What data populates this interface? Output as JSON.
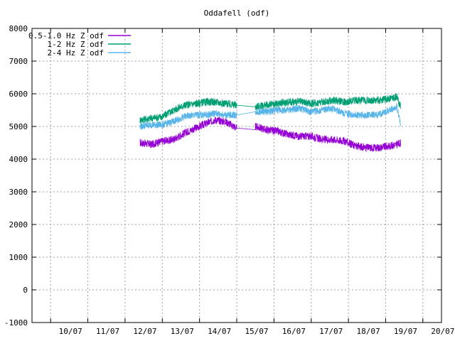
{
  "chart_data": {
    "type": "line",
    "title": "Oddafell (odf)",
    "xlabel": "",
    "ylabel": "",
    "x_tick_labels": [
      "10/07",
      "11/07",
      "12/07",
      "13/07",
      "14/07",
      "15/07",
      "16/07",
      "17/07",
      "18/07",
      "19/07",
      "20/07"
    ],
    "xlim": [
      9.5,
      20.5
    ],
    "ylim": [
      -1000,
      8000
    ],
    "y_ticks": [
      -1000,
      0,
      1000,
      2000,
      3000,
      4000,
      5000,
      6000,
      7000,
      8000
    ],
    "grid": true,
    "legend_position": "top-left",
    "series": [
      {
        "name": "0.5-1.0 Hz Z odf",
        "color": "#9400d3",
        "x": [
          12.4,
          12.7,
          13.0,
          13.3,
          13.6,
          13.9,
          14.2,
          14.4,
          14.7,
          15.0,
          15.5,
          15.5,
          15.8,
          16.1,
          16.4,
          16.7,
          17.0,
          17.3,
          17.6,
          17.9,
          18.2,
          18.5,
          18.8,
          19.1,
          19.3,
          19.4
        ],
        "values": [
          4500,
          4450,
          4550,
          4600,
          4800,
          4950,
          5100,
          5200,
          5150,
          4950,
          4900,
          5000,
          4900,
          4850,
          4750,
          4700,
          4700,
          4600,
          4600,
          4550,
          4400,
          4350,
          4350,
          4400,
          4450,
          4500
        ]
      },
      {
        "name": "1-2 Hz Z odf",
        "color": "#009e73",
        "x": [
          12.4,
          12.7,
          13.0,
          13.3,
          13.6,
          13.9,
          14.2,
          14.4,
          14.7,
          15.0,
          15.5,
          15.5,
          15.8,
          16.1,
          16.4,
          16.7,
          17.0,
          17.3,
          17.6,
          17.9,
          18.2,
          18.5,
          18.8,
          19.1,
          19.3,
          19.4
        ],
        "values": [
          5200,
          5250,
          5300,
          5500,
          5650,
          5700,
          5750,
          5750,
          5700,
          5650,
          5600,
          5600,
          5650,
          5700,
          5750,
          5750,
          5700,
          5750,
          5800,
          5750,
          5800,
          5800,
          5800,
          5850,
          5900,
          5600
        ]
      },
      {
        "name": "2-4 Hz Z odf",
        "color": "#56b4e9",
        "x": [
          12.4,
          12.7,
          13.0,
          13.3,
          13.6,
          13.9,
          14.2,
          14.4,
          14.7,
          15.0,
          15.5,
          15.5,
          15.8,
          16.1,
          16.4,
          16.7,
          17.0,
          17.3,
          17.6,
          17.9,
          18.2,
          18.5,
          18.8,
          19.1,
          19.3,
          19.4
        ],
        "values": [
          5000,
          5050,
          5050,
          5150,
          5300,
          5350,
          5350,
          5400,
          5350,
          5350,
          5450,
          5450,
          5450,
          5500,
          5500,
          5550,
          5450,
          5500,
          5550,
          5400,
          5350,
          5350,
          5350,
          5500,
          5600,
          5100
        ]
      }
    ]
  }
}
